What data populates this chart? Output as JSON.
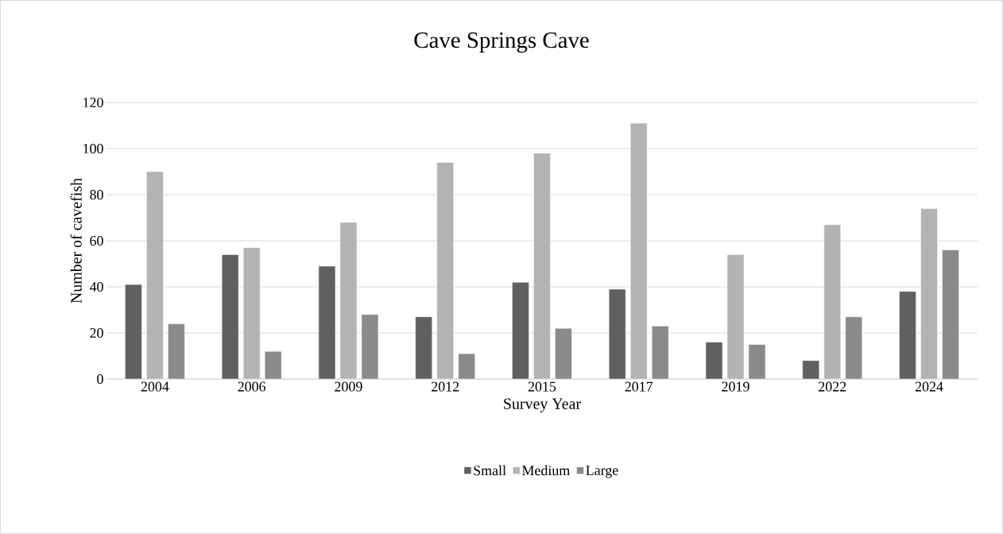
{
  "chart_data": {
    "type": "bar",
    "title": "Cave Springs Cave",
    "xlabel": "Survey Year",
    "ylabel": "Number of cavefish",
    "categories": [
      "2004",
      "2006",
      "2009",
      "2012",
      "2015",
      "2017",
      "2019",
      "2022",
      "2024"
    ],
    "series": [
      {
        "name": "Small",
        "color": "#606060",
        "values": [
          41,
          54,
          49,
          27,
          42,
          39,
          16,
          8,
          38
        ]
      },
      {
        "name": "Medium",
        "color": "#b3b3b3",
        "values": [
          90,
          57,
          68,
          94,
          98,
          111,
          54,
          67,
          74
        ]
      },
      {
        "name": "Large",
        "color": "#8a8a8a",
        "values": [
          24,
          12,
          28,
          11,
          22,
          23,
          15,
          27,
          56
        ]
      }
    ],
    "ylim": [
      0,
      120
    ],
    "yticks": [
      0,
      20,
      40,
      60,
      80,
      100,
      120
    ],
    "grid": "y",
    "legend": "bottom"
  }
}
